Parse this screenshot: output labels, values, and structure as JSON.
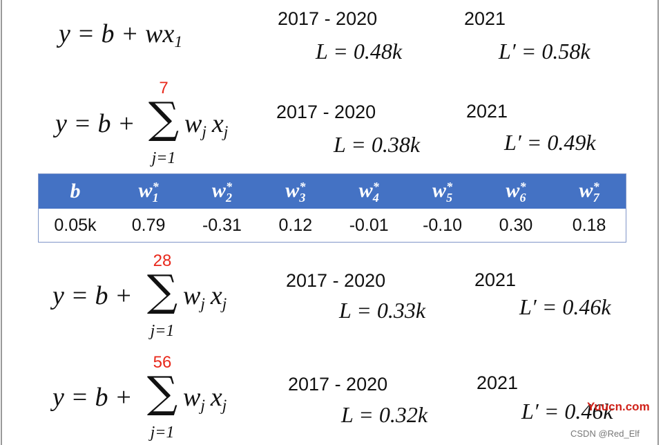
{
  "models": [
    {
      "lhs": "y = b + ",
      "terms": [
        {
          "base": "wx",
          "sub": "1"
        }
      ],
      "train_period": "2017 - 2020",
      "train_loss": "L = 0.48k",
      "test_period": "2021",
      "test_loss": "L′ = 0.58k"
    },
    {
      "lhs": "y = b + ",
      "sum": {
        "symbol": "∑",
        "upper": "7",
        "lower": "j=1"
      },
      "terms": [
        {
          "base": "w",
          "sub": "j"
        },
        {
          "base": "x",
          "sub": "j"
        }
      ],
      "train_period": "2017 - 2020",
      "train_loss": "L = 0.38k",
      "test_period": "2021",
      "test_loss": "L′ = 0.49k"
    },
    {
      "lhs": "y = b + ",
      "sum": {
        "symbol": "∑",
        "upper": "28",
        "lower": "j=1"
      },
      "terms": [
        {
          "base": "w",
          "sub": "j"
        },
        {
          "base": "x",
          "sub": "j"
        }
      ],
      "train_period": "2017 - 2020",
      "train_loss": "L = 0.33k",
      "test_period": "2021",
      "test_loss": "L′ = 0.46k"
    },
    {
      "lhs": "y = b + ",
      "sum": {
        "symbol": "∑",
        "upper": "56",
        "lower": "j=1"
      },
      "terms": [
        {
          "base": "w",
          "sub": "j"
        },
        {
          "base": "x",
          "sub": "j"
        }
      ],
      "train_period": "2017 - 2020",
      "train_loss": "L = 0.32k",
      "test_period": "2021",
      "test_loss": "L′ = 0.46k"
    }
  ],
  "table": {
    "header": [
      {
        "symbol": "b"
      },
      {
        "symbol": "w",
        "sup": "*",
        "sub": "1"
      },
      {
        "symbol": "w",
        "sup": "*",
        "sub": "2"
      },
      {
        "symbol": "w",
        "sup": "*",
        "sub": "3"
      },
      {
        "symbol": "w",
        "sup": "*",
        "sub": "4"
      },
      {
        "symbol": "w",
        "sup": "*",
        "sub": "5"
      },
      {
        "symbol": "w",
        "sup": "*",
        "sub": "6"
      },
      {
        "symbol": "w",
        "sup": "*",
        "sub": "7"
      }
    ],
    "values": [
      "0.05k",
      "0.79",
      "-0.31",
      "0.12",
      "-0.01",
      "-0.10",
      "0.30",
      "0.18"
    ]
  },
  "watermarks": [
    "Yuucn.com",
    "CSDN @Red_Elf"
  ]
}
